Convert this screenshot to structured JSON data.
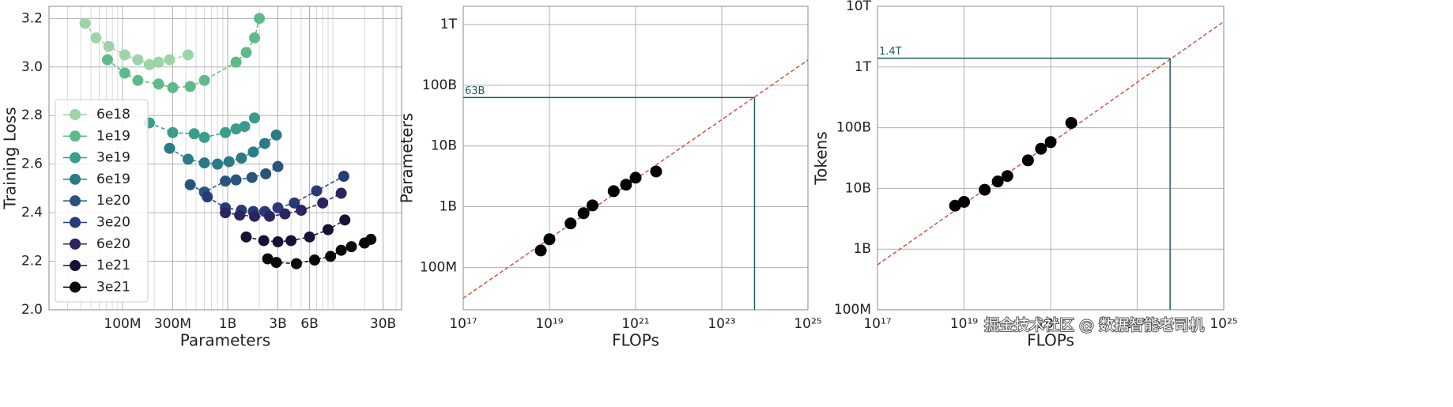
{
  "chart_data": [
    {
      "type": "line",
      "xlabel": "Parameters",
      "ylabel": "Training Loss",
      "xscale": "log",
      "yscale": "linear",
      "xlim": [
        20000000.0,
        45000000000.0
      ],
      "ylim": [
        2.0,
        3.25
      ],
      "xticks": [
        {
          "value": 100000000.0,
          "label": "100M"
        },
        {
          "value": 300000000.0,
          "label": "300M"
        },
        {
          "value": 1000000000.0,
          "label": "1B"
        },
        {
          "value": 3000000000.0,
          "label": "3B"
        },
        {
          "value": 6000000000.0,
          "label": "6B"
        },
        {
          "value": 30000000000.0,
          "label": "30B"
        }
      ],
      "yticks": [
        {
          "value": 2,
          "label": "2.0"
        },
        2.2,
        2.4,
        2.6,
        2.8,
        {
          "value": 3,
          "label": "3.0"
        },
        3.2
      ],
      "grid": true,
      "minor_grid": true,
      "legend": "lower left",
      "series": [
        {
          "name": "6e18",
          "color": "#9dd4a7",
          "x": [
            44000000.0,
            56000000.0,
            74000000.0,
            105000000.0,
            140000000.0,
            180000000.0,
            220000000.0,
            280000000.0,
            420000000.0
          ],
          "values": [
            3.18,
            3.12,
            3.085,
            3.05,
            3.03,
            3.01,
            3.02,
            3.03,
            3.05
          ]
        },
        {
          "name": "1e19",
          "color": "#5fba8a",
          "x": [
            72000000.0,
            105000000.0,
            140000000.0,
            220000000.0,
            300000000.0,
            440000000.0,
            600000000.0,
            1200000000.0,
            1500000000.0,
            1800000000.0,
            2000000000.0
          ],
          "values": [
            3.03,
            2.975,
            2.945,
            2.93,
            2.915,
            2.92,
            2.945,
            3.02,
            3.06,
            3.12,
            3.2
          ]
        },
        {
          "name": "3e19",
          "color": "#3a9c8a",
          "x": [
            180000000.0,
            300000000.0,
            480000000.0,
            600000000.0,
            950000000.0,
            1200000000.0,
            1450000000.0,
            1800000000.0
          ],
          "values": [
            2.77,
            2.73,
            2.725,
            2.71,
            2.73,
            2.745,
            2.755,
            2.79
          ]
        },
        {
          "name": "6e19",
          "color": "#2a7b85",
          "x": [
            280000000.0,
            420000000.0,
            600000000.0,
            800000000.0,
            1030000000.0,
            1350000000.0,
            1750000000.0,
            2250000000.0,
            2900000000.0
          ],
          "values": [
            2.665,
            2.62,
            2.605,
            2.6,
            2.61,
            2.625,
            2.65,
            2.685,
            2.72
          ]
        },
        {
          "name": "1e20",
          "color": "#28557e",
          "x": [
            440000000.0,
            600000000.0,
            950000000.0,
            1200000000.0,
            1700000000.0,
            2300000000.0,
            3000000000.0
          ],
          "values": [
            2.515,
            2.485,
            2.53,
            2.535,
            2.545,
            2.56,
            2.59
          ]
        },
        {
          "name": "3e20",
          "color": "#283a78",
          "x": [
            640000000.0,
            950000000.0,
            1350000000.0,
            1750000000.0,
            2250000000.0,
            3000000000.0,
            4300000000.0,
            7000000000.0,
            12700000000.0
          ],
          "values": [
            2.465,
            2.42,
            2.41,
            2.405,
            2.405,
            2.42,
            2.44,
            2.49,
            2.55
          ]
        },
        {
          "name": "6e20",
          "color": "#2b2460",
          "x": [
            950000000.0,
            1300000000.0,
            1800000000.0,
            2500000000.0,
            3500000000.0,
            5000000000.0,
            8000000000.0,
            12000000000.0
          ],
          "values": [
            2.4,
            2.39,
            2.385,
            2.385,
            2.395,
            2.41,
            2.44,
            2.48
          ]
        },
        {
          "name": "1e21",
          "color": "#1a1036",
          "x": [
            1500000000.0,
            2200000000.0,
            3000000000.0,
            4000000000.0,
            6000000000.0,
            9000000000.0,
            13000000000.0
          ],
          "values": [
            2.3,
            2.285,
            2.28,
            2.285,
            2.3,
            2.33,
            2.37
          ]
        },
        {
          "name": "3e21",
          "color": "#0a0a0a",
          "x": [
            2400000000.0,
            2900000000.0,
            4500000000.0,
            6700000000.0,
            9500000000.0,
            12000000000.0,
            15000000000.0,
            20000000000.0,
            23000000000.0
          ],
          "values": [
            2.21,
            2.195,
            2.19,
            2.205,
            2.22,
            2.245,
            2.26,
            2.275,
            2.29
          ]
        }
      ]
    },
    {
      "type": "scatter",
      "xlabel": "FLOPs",
      "ylabel": "Parameters",
      "xscale": "log",
      "yscale": "log",
      "xlim": [
        1e+17,
        1e+25
      ],
      "ylim": [
        20000000.0,
        2000000000000.0
      ],
      "xticks": [
        {
          "value": 1e+17,
          "label": "10¹⁷"
        },
        {
          "value": 1e+19,
          "label": "10¹⁹"
        },
        {
          "value": 1e+21,
          "label": "10²¹"
        },
        {
          "value": 1e+23,
          "label": "10²³"
        },
        {
          "value": 1e+25,
          "label": "10²⁵"
        }
      ],
      "yticks": [
        {
          "value": 100000000.0,
          "label": "100M"
        },
        {
          "value": 1000000000.0,
          "label": "1B"
        },
        {
          "value": 10000000000.0,
          "label": "10B"
        },
        {
          "value": 100000000000.0,
          "label": "100B"
        },
        {
          "value": 1000000000000.0,
          "label": "1T"
        }
      ],
      "grid": true,
      "color": "#000000",
      "x": [
        6.3e+18,
        1e+19,
        3.1e+19,
        6.2e+19,
        1e+20,
        3.1e+20,
        6e+20,
        1e+21,
        3e+21
      ],
      "values": [
        190000000.0,
        290000000.0,
        530000000.0,
        780000000.0,
        1050000000.0,
        1800000000.0,
        2300000000.0,
        3000000000.0,
        3800000000.0
      ],
      "fit": {
        "color": "#d4533a",
        "x": [
          1e+17,
          1e+25
        ],
        "y": [
          31000000.0,
          260000000000.0
        ]
      },
      "optimal": {
        "color": "#1d5f5e",
        "x": 5.76e+23,
        "y": 63000000000.0,
        "label": "63B"
      }
    },
    {
      "type": "scatter",
      "xlabel": "FLOPs",
      "ylabel": "Tokens",
      "xscale": "log",
      "yscale": "log",
      "xlim": [
        1e+17,
        1e+25
      ],
      "ylim": [
        100000000.0,
        10000000000000.0
      ],
      "xticks": [
        {
          "value": 1e+17,
          "label": "10¹⁷"
        },
        {
          "value": 1e+19,
          "label": "10¹⁹"
        },
        {
          "value": 1e+21,
          "label": "10²¹"
        },
        {
          "value": 1e+23,
          "label": "10²³"
        },
        {
          "value": 1e+25,
          "label": "10²⁵"
        }
      ],
      "yticks": [
        {
          "value": 100000000.0,
          "label": "100M"
        },
        {
          "value": 1000000000.0,
          "label": "1B"
        },
        {
          "value": 10000000000.0,
          "label": "10B"
        },
        {
          "value": 100000000000.0,
          "label": "100B"
        },
        {
          "value": 1000000000000.0,
          "label": "1T"
        },
        {
          "value": 10000000000000.0,
          "label": "10T"
        }
      ],
      "grid": true,
      "color": "#000000",
      "x": [
        6.2e+18,
        1e+19,
        3e+19,
        6e+19,
        1e+20,
        3e+20,
        6e+20,
        1e+21,
        3e+21
      ],
      "values": [
        5200000000.0,
        6000000000.0,
        9500000000.0,
        13000000000.0,
        16000000000.0,
        29000000000.0,
        45000000000.0,
        58000000000.0,
        120000000000.0
      ],
      "fit": {
        "color": "#d4533a",
        "x": [
          1e+17,
          1e+25
        ],
        "y": [
          550000000.0,
          5600000000000.0
        ]
      },
      "optimal": {
        "color": "#1d5f5e",
        "x": 5.76e+23,
        "y": 1400000000000.0,
        "label": "1.4T"
      },
      "watermark": "掘金技术社区 @ 数据智能老司机"
    }
  ]
}
